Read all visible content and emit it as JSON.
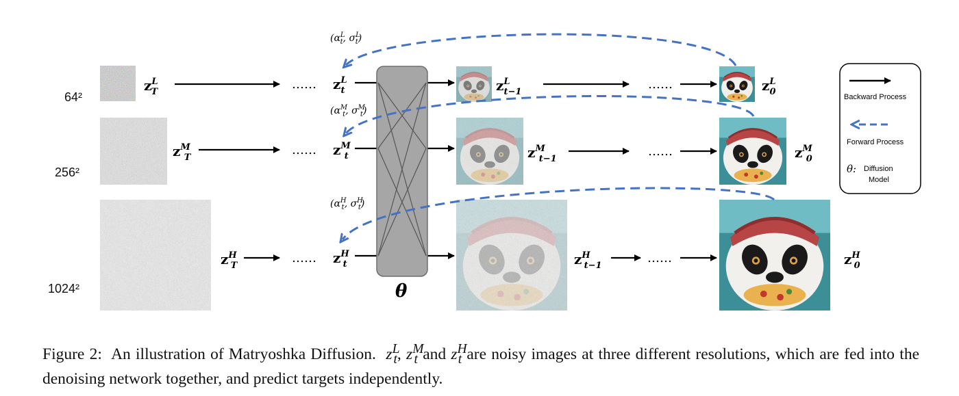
{
  "resolutions": {
    "low": "64²",
    "mid": "256²",
    "high": "1024²"
  },
  "dots": "……",
  "labels": {
    "zT_L": {
      "base": "z",
      "sup": "L",
      "sub": "T"
    },
    "zt_L": {
      "base": "z",
      "sup": "L",
      "sub": "t"
    },
    "zt1_L": {
      "base": "z",
      "sup": "L",
      "sub": "t−1"
    },
    "z0_L": {
      "base": "z",
      "sup": "L",
      "sub": "0"
    },
    "zT_M": {
      "base": "z",
      "sup": "M",
      "sub": "T"
    },
    "zt_M": {
      "base": "z",
      "sup": "M",
      "sub": "t"
    },
    "zt1_M": {
      "base": "z",
      "sup": "M",
      "sub": "t−1"
    },
    "z0_M": {
      "base": "z",
      "sup": "M",
      "sub": "0"
    },
    "zT_H": {
      "base": "z",
      "sup": "H",
      "sub": "T"
    },
    "zt_H": {
      "base": "z",
      "sup": "H",
      "sub": "t"
    },
    "zt1_H": {
      "base": "z",
      "sup": "H",
      "sub": "t−1"
    },
    "z0_H": {
      "base": "z",
      "sup": "H",
      "sub": "0"
    }
  },
  "noise_params": {
    "L": "(α_t^L, σ_t^L)",
    "M": "(α_t^M, σ_t^M)",
    "H": "(α_t^H, σ_t^H)"
  },
  "network_label": "θ",
  "legend": {
    "backward": "Backward Process",
    "forward": "Forward Process",
    "model_symbol": "θ:",
    "model_line1": "Diffusion",
    "model_line2": "Model"
  },
  "colors": {
    "forward_arrow": "#4472c4",
    "network_fill": "#a6a6a6",
    "noise_base": "#8a8a8a"
  },
  "caption": {
    "prefix": "Figure 2:",
    "part1": "An illustration of Matryoshka Diffusion.",
    "z_L": "z",
    "z_L_sup": "L",
    "z_L_sub": "t",
    "sep1": ", ",
    "z_M": "z",
    "z_M_sup": "M",
    "z_M_sub": "t",
    "and": " and ",
    "z_H": "z",
    "z_H_sup": "H",
    "z_H_sub": "t",
    "part2": " are noisy images at three different resolutions, which are fed into the denoising network together, and predict targets independently."
  }
}
